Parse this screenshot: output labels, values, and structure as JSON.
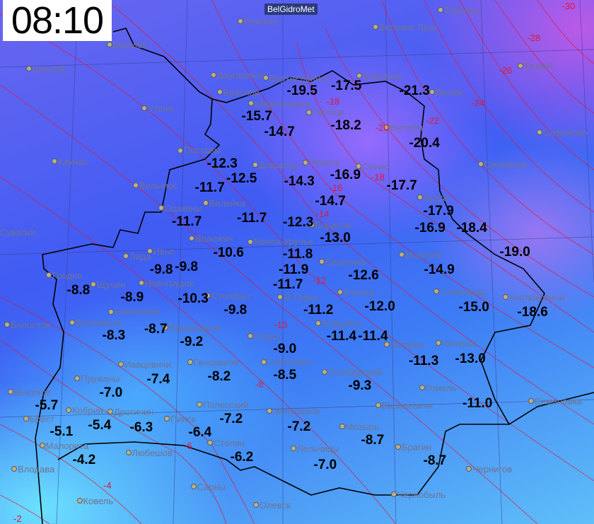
{
  "header": {
    "time": "08:10",
    "brand": "BelGidroMet"
  },
  "colors": {
    "temperature_label": "#000000",
    "isotherm": "#e0183a",
    "city_label": "#7b7f9a",
    "border": "#000000"
  },
  "temperatures": [
    "-19.5",
    "-17.5",
    "-21.3",
    "-15.7",
    "-14.7",
    "-18.2",
    "-20.4",
    "-12.3",
    "-12.5",
    "-11.7",
    "-14.3",
    "-16.9",
    "-14.7",
    "-17.7",
    "-17.9",
    "-16.9",
    "-18.4",
    "-11.7",
    "-11.7",
    "-12.3",
    "-13.0",
    "-19.0",
    "-10.6",
    "-11.8",
    "-11.9",
    "-11.7",
    "-12.6",
    "-14.9",
    "-9.8",
    "-9.8",
    "-8.8",
    "-8.9",
    "-10.3",
    "-9.8",
    "-11.2",
    "-12.0",
    "-15.0",
    "-18.6",
    "-8.3",
    "-8.7",
    "-9.2",
    "-11.4",
    "-11.4",
    "-9.0",
    "-11.3",
    "-13.0",
    "-7.4",
    "-8.2",
    "-8.5",
    "-9.3",
    "-7.0",
    "-5.7",
    "-11.0",
    "-5.1",
    "-5.4",
    "-6.3",
    "-7.2",
    "-6.4",
    "-7.2",
    "-8.7",
    "-4.2",
    "-6.2",
    "-7.0",
    "-8.7"
  ],
  "cities": [
    "Биржай",
    "Шяуляй",
    "Даугавпилс",
    "Верхнедвинск",
    "Браслав",
    "Шарковщина",
    "Полоцк",
    "Витебск",
    "Езерище",
    "Велиж",
    "Утена",
    "Поставы",
    "Докшицы",
    "Лепель",
    "Сенно",
    "Орша",
    "Каунас",
    "Вильнюс",
    "Ошмяны",
    "Вилейка",
    "Борисов",
    "Сувалки",
    "Лида",
    "Ивье",
    "Воложин",
    "Минск-Уручье",
    "Березино",
    "Могилев",
    "Гродно",
    "Щучин",
    "Новогрудок",
    "Столбцы",
    "М.Горка",
    "Кличев",
    "Славгород",
    "Костюковичи",
    "Белосток",
    "Волковыск",
    "Новоселки",
    "Барановичи",
    "Слуцк",
    "Бобруйск",
    "Жлобин",
    "Чечерск",
    "Ивацевичи",
    "Ганцевичи",
    "Солигорск",
    "Октябрьский",
    "Гомель",
    "Семеновка",
    "Пружаны",
    "Высокое",
    "Брест",
    "Кобрин",
    "Дрогичин",
    "Полесский",
    "Житковичи",
    "Пинск",
    "Василевичи",
    "Мозырь",
    "Столин",
    "Малорита",
    "Любешов",
    "Лельчицы",
    "Брагин",
    "Влодава",
    "Сарны",
    "Чернигов",
    "Ковель",
    "Олевск",
    "Чернобыль",
    "Торопец",
    "Великие Луки",
    "Белый",
    "Сафоново",
    "Смоленск",
    "Резекне"
  ],
  "isotherms": [
    "-30",
    "-28",
    "-26",
    "-24",
    "-22",
    "-20",
    "-18",
    "-18",
    "-16",
    "-14",
    "-12",
    "-10",
    "-8",
    "-6",
    "-4",
    "-2"
  ]
}
